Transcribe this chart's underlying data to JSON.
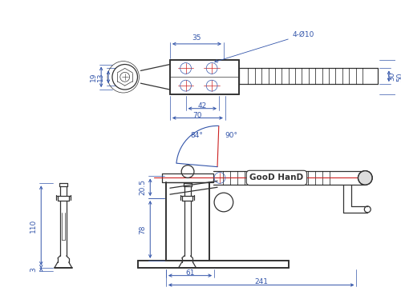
{
  "bg_color": "#ffffff",
  "line_color": "#3355aa",
  "dark_line": "#333333",
  "red_line": "#cc2222",
  "text_color": "#3355aa",
  "brand": "GooD HanD",
  "dims": {
    "top_35": "35",
    "top_42": "42",
    "top_70": "70",
    "top_19": "19",
    "top_13": "13",
    "top_30": "30",
    "top_50": "50",
    "top_hole": "4-Ø10",
    "bot_20p5": "20.5",
    "bot_78": "78",
    "bot_110": "110",
    "bot_3": "3",
    "bot_61": "61",
    "bot_241": "241",
    "bot_84": "84°",
    "bot_90": "90°"
  },
  "lw_main": 0.9,
  "lw_thick": 1.4,
  "lw_thin": 0.5,
  "lw_dim": 0.7,
  "fs": 6.5
}
